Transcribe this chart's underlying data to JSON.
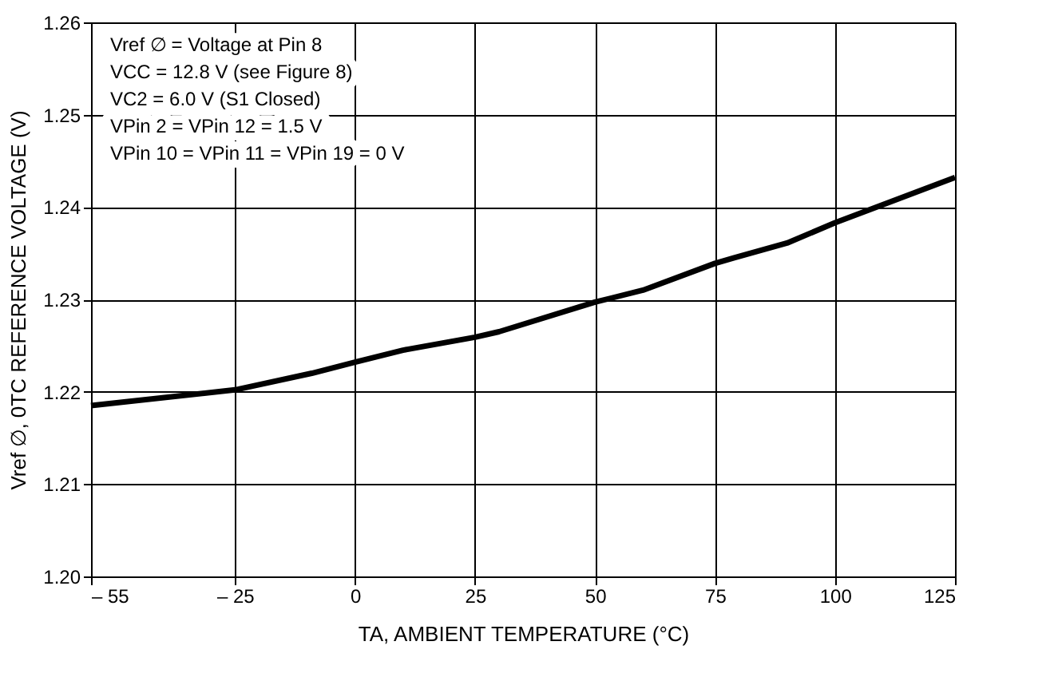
{
  "chart_data": {
    "type": "line",
    "xlabel": "TA, AMBIENT TEMPERATURE (°C)",
    "ylabel": "Vref ∅, 0TC REFERENCE VOLTAGE (V)",
    "annotations": [
      "Vref ∅ = Voltage at Pin 8",
      "VCC = 12.8 V (see Figure 8)",
      "VC2 = 6.0 V (S1 Closed)",
      "VPin 2 = VPin 12 = 1.5 V",
      "VPin 10 = VPin 11 = VPin 19 = 0 V"
    ],
    "x": [
      -55,
      -25,
      -9,
      0,
      10,
      25,
      30,
      50,
      60,
      75,
      79,
      90,
      100,
      125
    ],
    "series": [
      {
        "color": "#000000",
        "values": [
          1.2185,
          1.2202,
          1.222,
          1.2232,
          1.2245,
          1.2259,
          1.2265,
          1.2297,
          1.231,
          1.2339,
          1.2345,
          1.2361,
          1.2383,
          1.2432
        ]
      }
    ],
    "xlim": [
      -55,
      125
    ],
    "xticks": [
      {
        "value": -55,
        "label": "– 55"
      },
      {
        "value": -25,
        "label": "– 25"
      },
      0,
      25,
      50,
      75,
      100,
      125
    ],
    "ylim": [
      1.2,
      1.26
    ],
    "yticks": [
      {
        "value": 1.2,
        "label": "1.20"
      },
      1.21,
      1.22,
      1.23,
      1.24,
      1.25,
      1.26
    ],
    "grid": true,
    "legend": false,
    "marker": "none",
    "line_style": "solid"
  }
}
